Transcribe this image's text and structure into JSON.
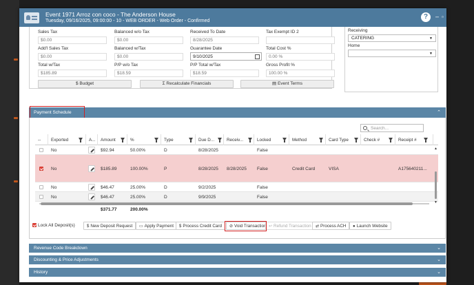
{
  "window": {
    "title": "Event 1971 Arroz con coco - The Anderson House",
    "subtitle": "Tuesday, 09/16/2025, 09:00:00 - 10 - WEB ORDER - Web Order - Confirmed",
    "help_label": "?",
    "minimize": "–",
    "restore": "▫",
    "close": "✕"
  },
  "financials": {
    "sales_tax": {
      "label": "Sales Tax",
      "value": "$0.00"
    },
    "balanced_wo_tax": {
      "label": "Balanced w/o Tax",
      "value": "$0.00"
    },
    "received_to_date": {
      "label": "Received To Date",
      "value": "8/28/2025"
    },
    "tax_exempt_id2": {
      "label": "Tax Exempt ID 2",
      "value": ""
    },
    "addl_sales_tax": {
      "label": "Add'l Sales Tax",
      "value": "$0.00"
    },
    "balanced_w_tax": {
      "label": "Balanced w/Tax",
      "value": "$0.00"
    },
    "guarantee_date": {
      "label": "Guarantee Date",
      "value": "9/10/2025"
    },
    "total_cost_pct": {
      "label": "Total Cost %",
      "value": "0.00 %"
    },
    "total_w_tax": {
      "label": "Total w/Tax",
      "value": "$185.89"
    },
    "pp_wo_tax": {
      "label": "P/P w/o Tax",
      "value": "$18.59"
    },
    "pp_total_w_tax": {
      "label": "P/P Total w/Tax",
      "value": "$18.59"
    },
    "gross_profit_pct": {
      "label": "Gross Profit %",
      "value": "100.00 %"
    },
    "buttons": {
      "budget": "Budget",
      "recalculate": "Recalculate Financials",
      "event_terms": "Event Terms"
    }
  },
  "side_panel": {
    "receiving_label": "Receiving",
    "receiving_value": "CATERING",
    "home_label": "Home",
    "home_value": ""
  },
  "payment_schedule": {
    "title": "Payment Schedule",
    "collapse_icon": "chevron-up-icon",
    "search_placeholder": "Search...",
    "columns": {
      "dash": "--",
      "exported": "Exported",
      "actions": "A...",
      "amount": "Amount",
      "percent": "%",
      "type": "Type",
      "due_date": "Due D...",
      "received": "Receiv...",
      "locked": "Locked",
      "method": "Method",
      "card_type": "Card Type",
      "check_no": "Check #",
      "receipt_no": "Receipt #"
    },
    "rows": [
      {
        "selected": false,
        "exported": "No",
        "amount": "$92.94",
        "percent": "50.00%",
        "type": "D",
        "due": "8/28/2025",
        "received": "",
        "locked": "False",
        "method": "",
        "card_type": "",
        "check": "",
        "receipt": ""
      },
      {
        "selected": true,
        "exported": "No",
        "amount": "$185.89",
        "percent": "100.00%",
        "type": "P",
        "due": "8/28/2025",
        "received": "8/28/2025",
        "locked": "False",
        "method": "Credit Card",
        "card_type": "VISA",
        "check": "",
        "receipt": "A175640211..."
      },
      {
        "selected": false,
        "exported": "No",
        "amount": "$46.47",
        "percent": "25.00%",
        "type": "D",
        "due": "9/2/2025",
        "received": "",
        "locked": "False",
        "method": "",
        "card_type": "",
        "check": "",
        "receipt": ""
      },
      {
        "selected": false,
        "exported": "No",
        "amount": "$46.47",
        "percent": "25.00%",
        "type": "D",
        "due": "9/9/2025",
        "received": "",
        "locked": "False",
        "method": "",
        "card_type": "",
        "check": "",
        "receipt": ""
      }
    ],
    "totals": {
      "amount": "$371.77",
      "percent": "200.00%"
    },
    "lock_all_label": "Lock All Deposit(s)",
    "actions": {
      "new_deposit": "New Deposit Request",
      "apply_payment": "Apply Payment",
      "process_cc": "Process Credit Card",
      "void_transaction": "Void Transaction",
      "refund": "Refund Transaction",
      "process_ach": "Process ACH",
      "launch_website": "Launch Website"
    }
  },
  "sections": {
    "revenue_code": "Revenue Code Breakdown",
    "discounting": "Discounting & Price Adjustments",
    "history": "History"
  },
  "colors": {
    "titlebar": "#4d7a9d",
    "section_header": "#5b86a6",
    "selected_row": "#f5cfcf",
    "highlight_box": "#d21f1f"
  }
}
